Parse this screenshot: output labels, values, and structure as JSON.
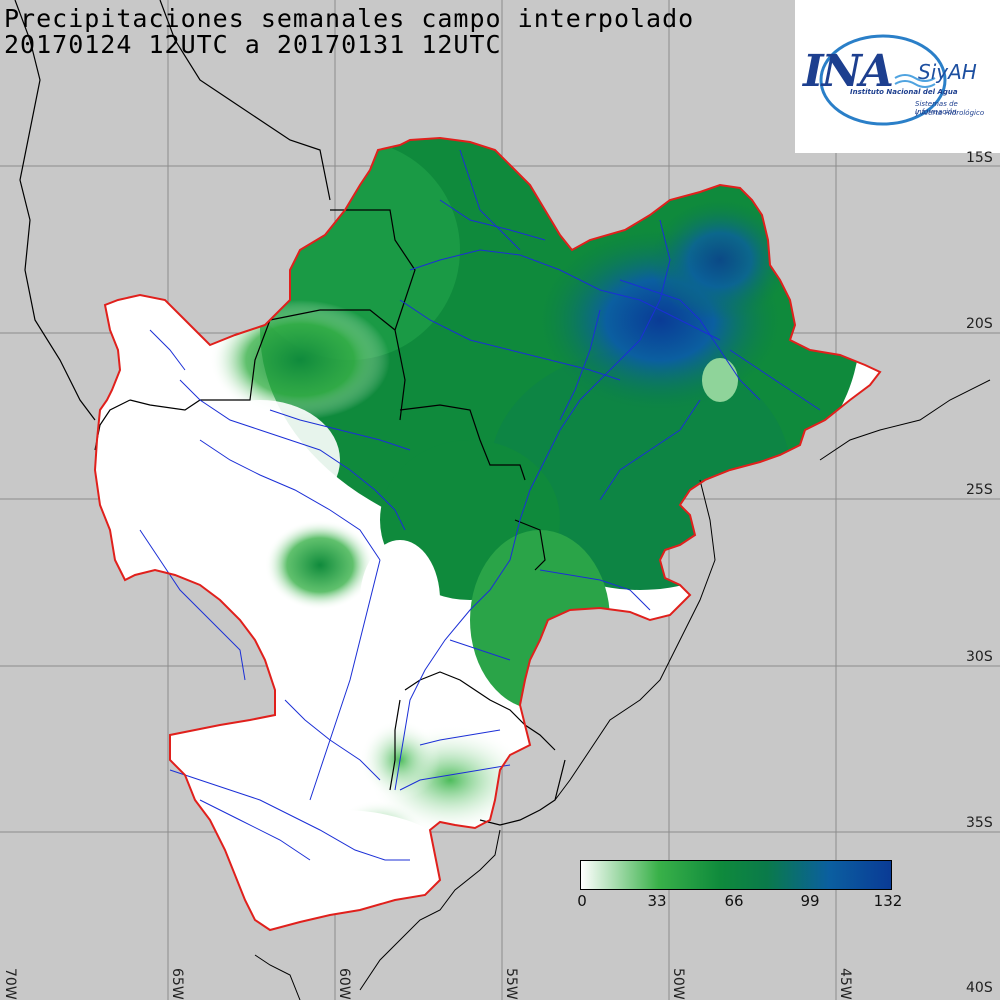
{
  "title": {
    "line1": "Precipitaciones semanales campo interpolado",
    "line2": "20170124 12UTC a 20170131 12UTC"
  },
  "logo": {
    "ina": "INA",
    "siyah": "SiyAH",
    "subtitle1": "Instituto Nacional del Agua",
    "subtitle2": "Sistemas de Información",
    "subtitle3": "y Alerta Hidrológico"
  },
  "lat_labels": [
    "15S",
    "20S",
    "25S",
    "30S",
    "35S",
    "40S"
  ],
  "lon_labels": [
    "70W",
    "65W",
    "60W",
    "55W",
    "50W",
    "45W"
  ],
  "colorbar": {
    "ticks": [
      "0",
      "33",
      "66",
      "99",
      "132"
    ],
    "colors": [
      "#ffffff",
      "#39b149",
      "#0f8a3c",
      "#0a7a4a",
      "#0b5fa0",
      "#0a3b96"
    ]
  },
  "colors": {
    "background": "#c8c8c8",
    "basin_outline": "#e0201c",
    "rivers": "#1b2fd6",
    "borders": "#000000",
    "grid": "#8c8c8c"
  }
}
